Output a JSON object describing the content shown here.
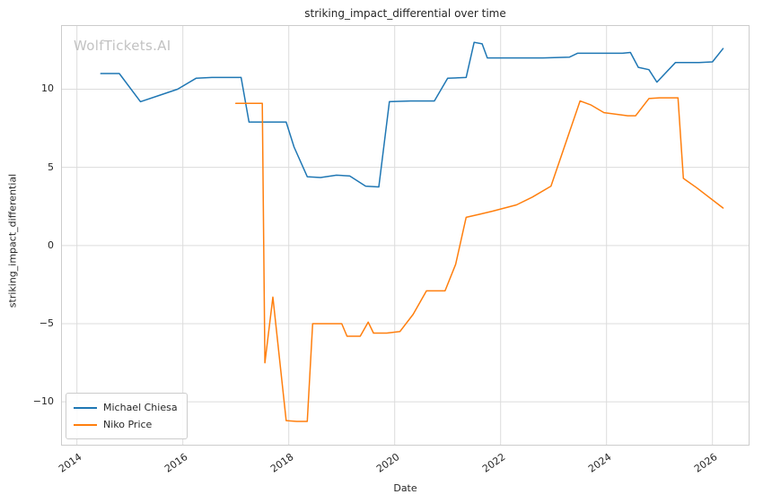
{
  "watermark": "WolfTickets.AI",
  "chart_data": {
    "type": "line",
    "title": "striking_impact_differential over time",
    "xlabel": "Date",
    "ylabel": "striking_impact_differential",
    "xlim": [
      2013.7,
      2026.7
    ],
    "ylim": [
      -12.8,
      14.1
    ],
    "x_ticks": [
      2014,
      2016,
      2018,
      2020,
      2022,
      2024,
      2026
    ],
    "y_ticks": [
      -10,
      -5,
      0,
      5,
      10
    ],
    "grid": true,
    "legend_position": "lower left",
    "series": [
      {
        "name": "Michael Chiesa",
        "color": "#1f77b4",
        "points": [
          [
            2014.45,
            11.0
          ],
          [
            2014.8,
            11.0
          ],
          [
            2015.2,
            9.2
          ],
          [
            2015.55,
            9.6
          ],
          [
            2015.9,
            10.0
          ],
          [
            2016.25,
            10.7
          ],
          [
            2016.55,
            10.75
          ],
          [
            2017.1,
            10.75
          ],
          [
            2017.25,
            7.9
          ],
          [
            2017.6,
            7.9
          ],
          [
            2017.95,
            7.9
          ],
          [
            2018.1,
            6.3
          ],
          [
            2018.35,
            4.4
          ],
          [
            2018.6,
            4.35
          ],
          [
            2018.9,
            4.5
          ],
          [
            2019.15,
            4.45
          ],
          [
            2019.45,
            3.8
          ],
          [
            2019.7,
            3.75
          ],
          [
            2019.9,
            9.2
          ],
          [
            2020.3,
            9.25
          ],
          [
            2020.75,
            9.25
          ],
          [
            2021.0,
            10.7
          ],
          [
            2021.35,
            10.75
          ],
          [
            2021.5,
            13.0
          ],
          [
            2021.65,
            12.9
          ],
          [
            2021.75,
            12.0
          ],
          [
            2022.2,
            12.0
          ],
          [
            2022.8,
            12.0
          ],
          [
            2023.3,
            12.05
          ],
          [
            2023.45,
            12.3
          ],
          [
            2023.9,
            12.3
          ],
          [
            2024.3,
            12.3
          ],
          [
            2024.45,
            12.35
          ],
          [
            2024.6,
            11.4
          ],
          [
            2024.8,
            11.25
          ],
          [
            2024.95,
            10.45
          ],
          [
            2025.3,
            11.7
          ],
          [
            2025.75,
            11.7
          ],
          [
            2026.0,
            11.75
          ],
          [
            2026.2,
            12.6
          ]
        ]
      },
      {
        "name": "Niko Price",
        "color": "#ff7f0e",
        "points": [
          [
            2017.0,
            9.1
          ],
          [
            2017.5,
            9.1
          ],
          [
            2017.55,
            -7.5
          ],
          [
            2017.7,
            -3.3
          ],
          [
            2017.95,
            -11.2
          ],
          [
            2018.15,
            -11.25
          ],
          [
            2018.35,
            -11.25
          ],
          [
            2018.45,
            -5.0
          ],
          [
            2018.75,
            -5.0
          ],
          [
            2019.0,
            -5.0
          ],
          [
            2019.1,
            -5.8
          ],
          [
            2019.35,
            -5.8
          ],
          [
            2019.5,
            -4.9
          ],
          [
            2019.6,
            -5.6
          ],
          [
            2019.85,
            -5.6
          ],
          [
            2020.1,
            -5.5
          ],
          [
            2020.35,
            -4.4
          ],
          [
            2020.6,
            -2.9
          ],
          [
            2020.95,
            -2.9
          ],
          [
            2021.15,
            -1.2
          ],
          [
            2021.35,
            1.8
          ],
          [
            2021.6,
            2.0
          ],
          [
            2021.85,
            2.2
          ],
          [
            2022.3,
            2.6
          ],
          [
            2022.6,
            3.1
          ],
          [
            2022.95,
            3.8
          ],
          [
            2023.5,
            9.25
          ],
          [
            2023.7,
            9.0
          ],
          [
            2023.95,
            8.5
          ],
          [
            2024.4,
            8.3
          ],
          [
            2024.55,
            8.3
          ],
          [
            2024.8,
            9.4
          ],
          [
            2025.0,
            9.45
          ],
          [
            2025.35,
            9.45
          ],
          [
            2025.45,
            4.3
          ],
          [
            2025.7,
            3.7
          ],
          [
            2026.2,
            2.4
          ]
        ]
      }
    ]
  },
  "style": {
    "grid_color": "#dcdcdc",
    "spine_color": "#cccccc",
    "text_color": "#262626"
  }
}
